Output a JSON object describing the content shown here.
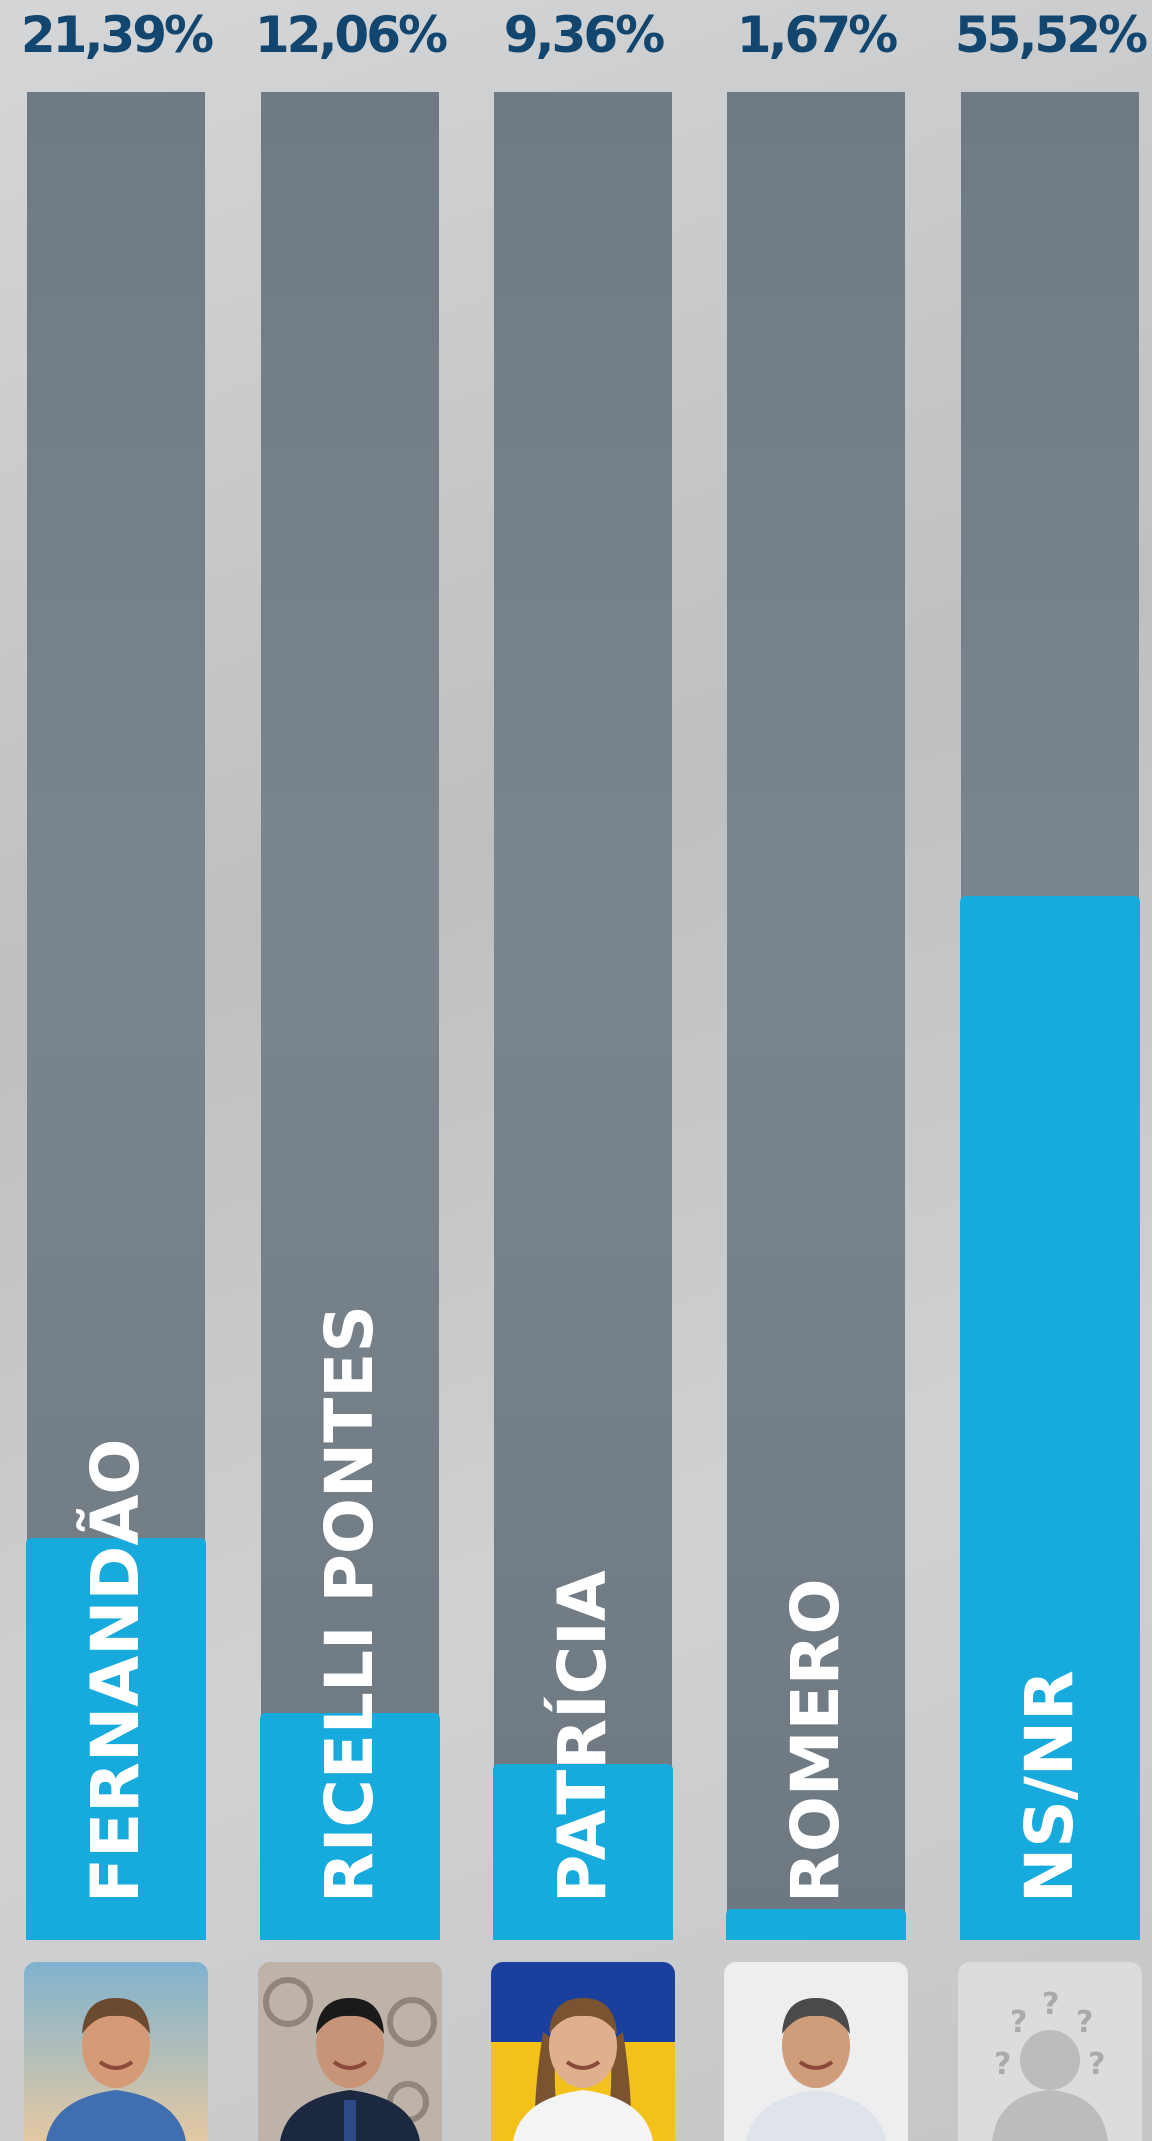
{
  "chart_data": {
    "type": "bar",
    "orientation": "vertical",
    "categories": [
      "FERNANDÃO",
      "RICELLI PONTES",
      "PATRÍCIA",
      "ROMERO",
      "NS/NR"
    ],
    "values": [
      21.39,
      12.06,
      9.36,
      1.67,
      55.52
    ],
    "value_labels": [
      "21,39%",
      "12,06%",
      "9,36%",
      "1,67%",
      "55,52%"
    ],
    "ylim": [
      0,
      68
    ],
    "grid": false,
    "legend": "none"
  },
  "colors": {
    "bar_fill": "#17aadd",
    "track": "#78828b",
    "value_label": "#12466e",
    "name_label": "#ffffff"
  },
  "photos": [
    {
      "icon": "candidate-photo-fernandao"
    },
    {
      "icon": "candidate-photo-ricelli"
    },
    {
      "icon": "candidate-photo-patricia"
    },
    {
      "icon": "candidate-photo-romero"
    },
    {
      "icon": "unknown-person-icon"
    }
  ]
}
